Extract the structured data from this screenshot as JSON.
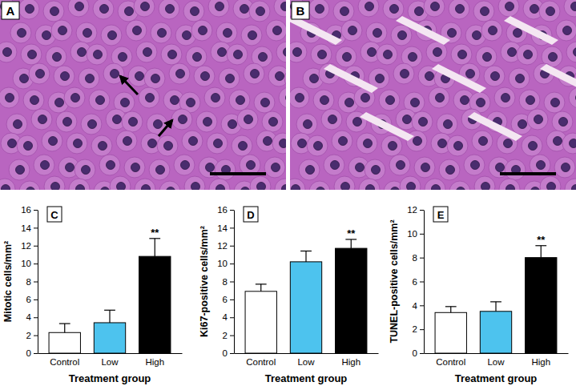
{
  "images": [
    {
      "label": "A"
    },
    {
      "label": "B"
    }
  ],
  "chart_data": [
    {
      "type": "bar",
      "title": "C",
      "y_label": "Mitotic cells/mm²",
      "x_label": "Treatment group",
      "categories": [
        "Control",
        "Low",
        "High"
      ],
      "values": [
        2.3,
        3.4,
        10.8
      ],
      "errors": [
        1.0,
        1.4,
        2.0
      ],
      "colors": [
        "#ffffff",
        "#4dc3ee",
        "#000000"
      ],
      "ylim": [
        0,
        16
      ],
      "yticks": [
        0,
        2,
        4,
        6,
        8,
        10,
        12,
        14,
        16
      ],
      "annotations": [
        {
          "text": "**",
          "category": "High"
        }
      ]
    },
    {
      "type": "bar",
      "title": "D",
      "y_label": "Ki67-positive cells/mm²",
      "x_label": "Treatment group",
      "categories": [
        "Control",
        "Low",
        "High"
      ],
      "values": [
        6.9,
        10.2,
        11.7
      ],
      "errors": [
        0.8,
        1.2,
        1.0
      ],
      "colors": [
        "#ffffff",
        "#4dc3ee",
        "#000000"
      ],
      "ylim": [
        0,
        16
      ],
      "yticks": [
        0,
        2,
        4,
        6,
        8,
        10,
        12,
        14,
        16
      ],
      "annotations": [
        {
          "text": "**",
          "category": "High"
        }
      ]
    },
    {
      "type": "bar",
      "title": "E",
      "y_label": "TUNEL-positive cells/mm²",
      "x_label": "Treatment group",
      "categories": [
        "Control",
        "Low",
        "High"
      ],
      "values": [
        3.4,
        3.5,
        8.0
      ],
      "errors": [
        0.5,
        0.8,
        1.0
      ],
      "colors": [
        "#ffffff",
        "#4dc3ee",
        "#000000"
      ],
      "ylim": [
        0,
        12
      ],
      "yticks": [
        0,
        2,
        4,
        6,
        8,
        10,
        12
      ],
      "annotations": [
        {
          "text": "**",
          "category": "High"
        }
      ]
    }
  ]
}
